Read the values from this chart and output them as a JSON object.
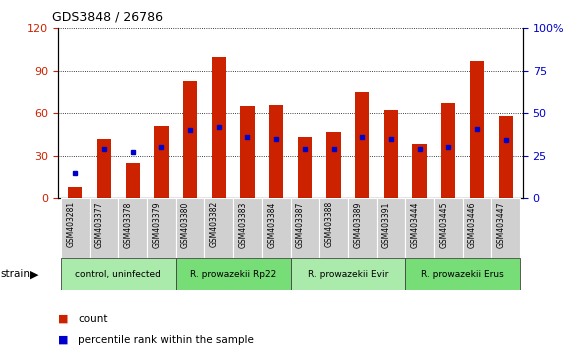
{
  "title": "GDS3848 / 26786",
  "samples": [
    "GSM403281",
    "GSM403377",
    "GSM403378",
    "GSM403379",
    "GSM403380",
    "GSM403382",
    "GSM403383",
    "GSM403384",
    "GSM403387",
    "GSM403388",
    "GSM403389",
    "GSM403391",
    "GSM403444",
    "GSM403445",
    "GSM403446",
    "GSM403447"
  ],
  "counts": [
    8,
    42,
    25,
    51,
    83,
    100,
    65,
    66,
    43,
    47,
    75,
    62,
    38,
    67,
    97,
    58
  ],
  "percentile_ranks": [
    15,
    29,
    27,
    30,
    40,
    42,
    36,
    35,
    29,
    29,
    36,
    35,
    29,
    30,
    41,
    34
  ],
  "groups": [
    {
      "label": "control, uninfected",
      "start": 0,
      "end": 4
    },
    {
      "label": "R. prowazekii Rp22",
      "start": 4,
      "end": 8
    },
    {
      "label": "R. prowazekii Evir",
      "start": 8,
      "end": 12
    },
    {
      "label": "R. prowazekii Erus",
      "start": 12,
      "end": 16
    }
  ],
  "group_colors": [
    "#aaeaaa",
    "#77dd77",
    "#aaeaaa",
    "#77dd77"
  ],
  "ylim_left": [
    0,
    120
  ],
  "ylim_right": [
    0,
    100
  ],
  "yticks_left": [
    0,
    30,
    60,
    90,
    120
  ],
  "yticks_right": [
    0,
    25,
    50,
    75,
    100
  ],
  "bar_color": "#cc2200",
  "marker_color": "#0000cc",
  "bar_width": 0.5,
  "left_tick_color": "#cc2200",
  "right_tick_color": "#0000cc",
  "legend_count_label": "count",
  "legend_pct_label": "percentile rank within the sample",
  "strain_label": "strain"
}
